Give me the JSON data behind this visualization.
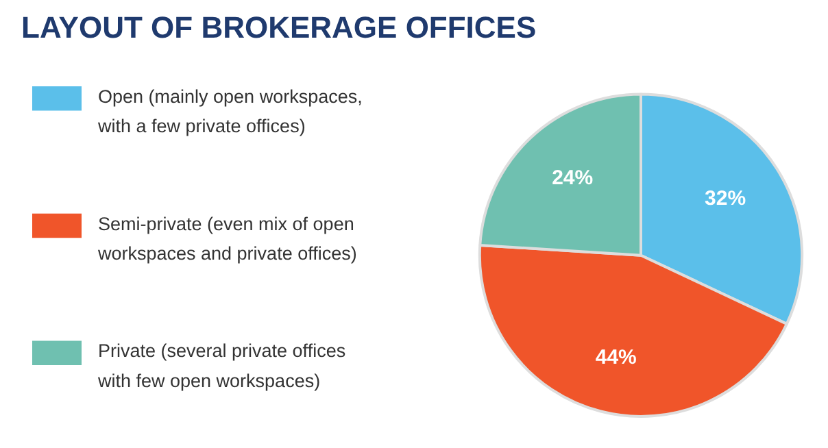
{
  "chart_data": {
    "type": "pie",
    "title": "LAYOUT OF BROKERAGE OFFICES",
    "categories": [
      "Open (mainly open workspaces,\nwith a few private offices)",
      "Semi-private (even mix of open\nworkspaces and private offices)",
      "Private (several private offices\nwith few open workspaces)"
    ],
    "values": [
      32,
      44,
      24
    ],
    "colors": [
      "#5bbfea",
      "#f0552a",
      "#6fc0b0"
    ],
    "value_labels": [
      "32%",
      "44%",
      "24%"
    ],
    "legend": "left"
  }
}
